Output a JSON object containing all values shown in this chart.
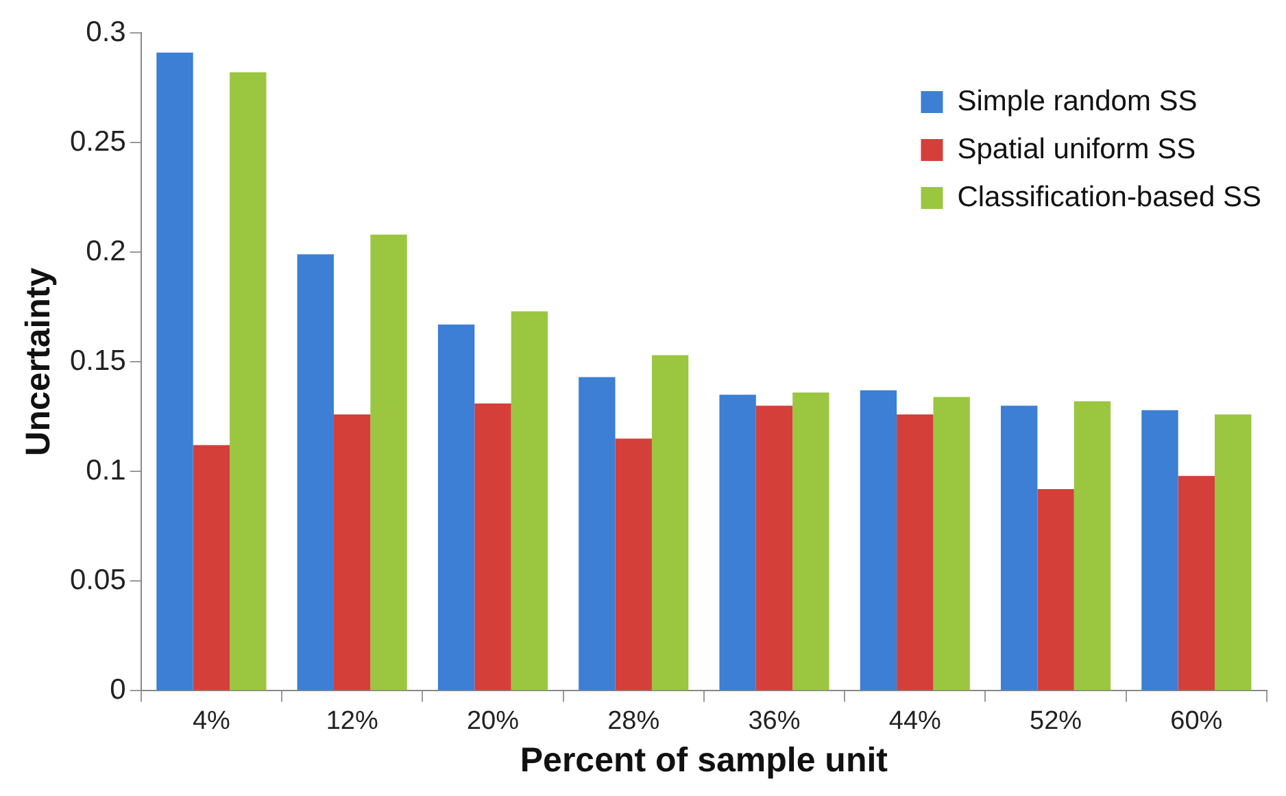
{
  "chart_data": {
    "type": "bar",
    "xlabel": "Percent of sample unit",
    "ylabel": "Uncertainty",
    "categories": [
      "4%",
      "12%",
      "20%",
      "28%",
      "36%",
      "44%",
      "52%",
      "60%"
    ],
    "series": [
      {
        "name": "Simple random SS",
        "color": "#3c7fd4",
        "values": [
          0.291,
          0.199,
          0.167,
          0.143,
          0.135,
          0.137,
          0.13,
          0.128
        ]
      },
      {
        "name": "Spatial uniform SS",
        "color": "#d43f3a",
        "values": [
          0.112,
          0.126,
          0.131,
          0.115,
          0.13,
          0.126,
          0.092,
          0.098
        ]
      },
      {
        "name": "Classification-based SS",
        "color": "#9bc640",
        "values": [
          0.282,
          0.208,
          0.173,
          0.153,
          0.136,
          0.134,
          0.132,
          0.126
        ]
      }
    ],
    "ylim": [
      0,
      0.3
    ],
    "yticks": [
      0,
      0.05,
      0.1,
      0.15,
      0.2,
      0.25,
      0.3
    ],
    "grid": false,
    "legend": "top right"
  }
}
